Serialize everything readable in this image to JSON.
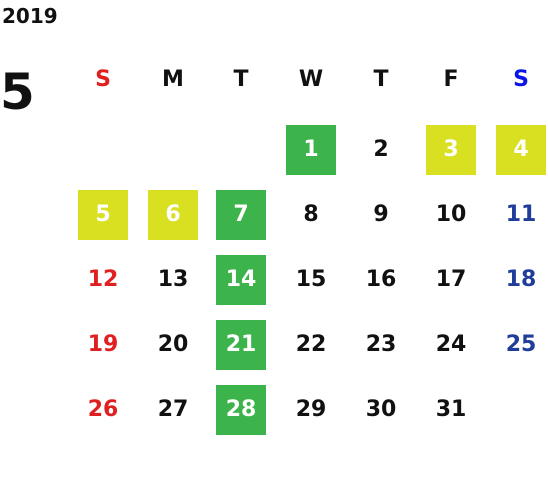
{
  "header": {
    "year": "2019",
    "month": "5"
  },
  "weekdays": [
    "S",
    "M",
    "T",
    "W",
    "T",
    "F",
    "S"
  ],
  "weeks": [
    [
      null,
      null,
      null,
      {
        "day": 1,
        "style": "green"
      },
      {
        "day": 2
      },
      {
        "day": 3,
        "style": "yellow"
      },
      {
        "day": 4,
        "style": "yellow"
      }
    ],
    [
      {
        "day": 5,
        "style": "yellow"
      },
      {
        "day": 6,
        "style": "yellow"
      },
      {
        "day": 7,
        "style": "green"
      },
      {
        "day": 8
      },
      {
        "day": 9
      },
      {
        "day": 10
      },
      {
        "day": 11
      }
    ],
    [
      {
        "day": 12
      },
      {
        "day": 13
      },
      {
        "day": 14,
        "style": "green"
      },
      {
        "day": 15
      },
      {
        "day": 16
      },
      {
        "day": 17
      },
      {
        "day": 18
      }
    ],
    [
      {
        "day": 19
      },
      {
        "day": 20
      },
      {
        "day": 21,
        "style": "green"
      },
      {
        "day": 22
      },
      {
        "day": 23
      },
      {
        "day": 24
      },
      {
        "day": 25
      }
    ],
    [
      {
        "day": 26
      },
      {
        "day": 27
      },
      {
        "day": 28,
        "style": "green"
      },
      {
        "day": 29
      },
      {
        "day": 30
      },
      {
        "day": 31
      },
      null
    ]
  ]
}
